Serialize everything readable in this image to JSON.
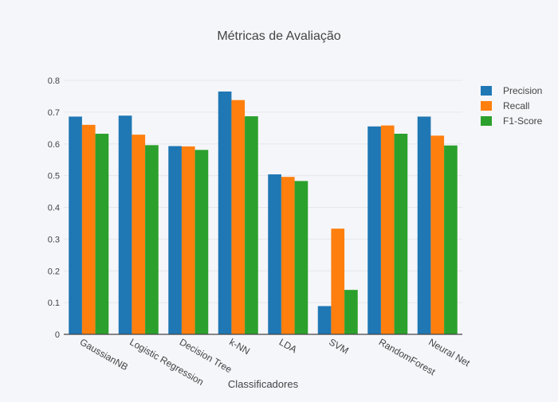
{
  "chart_data": {
    "type": "bar",
    "title": "Métricas de Avaliação",
    "xlabel": "Classificadores",
    "ylabel": "",
    "ylim": [
      0,
      0.8
    ],
    "yticks": [
      "0",
      "0.1",
      "0.2",
      "0.3",
      "0.4",
      "0.5",
      "0.6",
      "0.7",
      "0.8"
    ],
    "grid": true,
    "legend_position": "right",
    "categories": [
      "GaussianNB",
      "Logistic Regression",
      "Decision Tree",
      "k-NN",
      "LDA",
      "SVM",
      "RandomForest",
      "Neural Net"
    ],
    "series": [
      {
        "name": "Precision",
        "color": "#1f77b4",
        "values": [
          0.686,
          0.689,
          0.593,
          0.765,
          0.504,
          0.089,
          0.655,
          0.686
        ]
      },
      {
        "name": "Recall",
        "color": "#ff7f0e",
        "values": [
          0.66,
          0.629,
          0.592,
          0.738,
          0.496,
          0.333,
          0.658,
          0.626
        ]
      },
      {
        "name": "F1-Score",
        "color": "#2ca02c",
        "values": [
          0.632,
          0.596,
          0.581,
          0.687,
          0.483,
          0.14,
          0.632,
          0.595
        ]
      }
    ]
  }
}
